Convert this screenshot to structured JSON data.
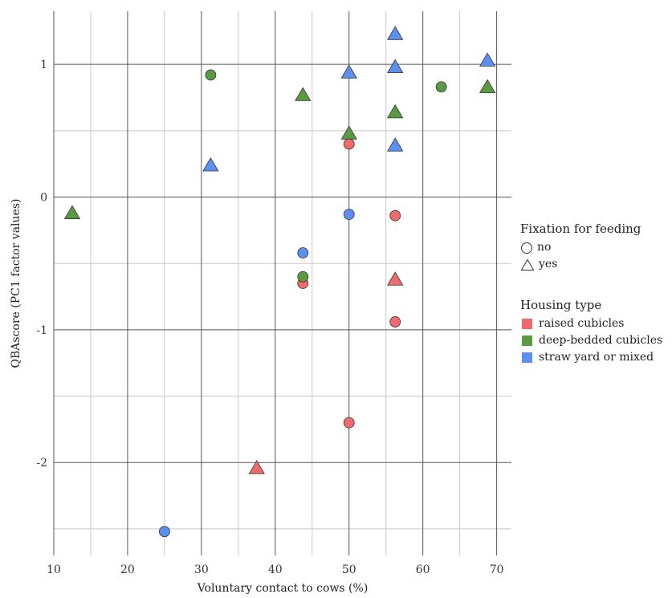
{
  "chart_data": {
    "type": "scatter",
    "xlabel": "Voluntary contact to cows (%)",
    "ylabel": "QBAscore (PC1 factor values)",
    "xlim": [
      10,
      72
    ],
    "ylim": [
      -2.7,
      1.4
    ],
    "x_ticks": [
      10,
      20,
      30,
      40,
      50,
      60,
      70
    ],
    "y_ticks": [
      1,
      0,
      -1,
      -2
    ],
    "x_tick_labels": [
      "10",
      "20",
      "30",
      "40",
      "50",
      "60",
      "70"
    ],
    "y_tick_labels": [
      "1",
      "0",
      "-1",
      "-2"
    ],
    "grid": true,
    "legends": [
      {
        "title": "Fixation for feeding",
        "items": [
          {
            "label": "no",
            "shape": "circle"
          },
          {
            "label": "yes",
            "shape": "triangle"
          }
        ]
      },
      {
        "title": "Housing type",
        "items": [
          {
            "label": "raised cubicles",
            "color": "#ef6b6b"
          },
          {
            "label": "deep-bedded cubicles",
            "color": "#5a9a42"
          },
          {
            "label": "straw yard or mixed",
            "color": "#5b8ff0"
          }
        ]
      }
    ],
    "points": [
      {
        "x": 12.5,
        "y": -0.12,
        "housing": "deep-bedded cubicles",
        "fixation": "yes"
      },
      {
        "x": 25.0,
        "y": -2.52,
        "housing": "straw yard or mixed",
        "fixation": "no"
      },
      {
        "x": 31.25,
        "y": 0.92,
        "housing": "deep-bedded cubicles",
        "fixation": "no"
      },
      {
        "x": 31.25,
        "y": 0.24,
        "housing": "straw yard or mixed",
        "fixation": "yes"
      },
      {
        "x": 37.5,
        "y": -2.04,
        "housing": "raised cubicles",
        "fixation": "yes"
      },
      {
        "x": 43.75,
        "y": 0.77,
        "housing": "deep-bedded cubicles",
        "fixation": "yes"
      },
      {
        "x": 43.75,
        "y": -0.42,
        "housing": "straw yard or mixed",
        "fixation": "no"
      },
      {
        "x": 43.75,
        "y": -0.65,
        "housing": "raised cubicles",
        "fixation": "no"
      },
      {
        "x": 43.75,
        "y": -0.6,
        "housing": "deep-bedded cubicles",
        "fixation": "no"
      },
      {
        "x": 50.0,
        "y": 0.94,
        "housing": "straw yard or mixed",
        "fixation": "yes"
      },
      {
        "x": 50.0,
        "y": 0.48,
        "housing": "deep-bedded cubicles",
        "fixation": "yes"
      },
      {
        "x": 50.0,
        "y": 0.4,
        "housing": "raised cubicles",
        "fixation": "no"
      },
      {
        "x": 50.0,
        "y": -0.13,
        "housing": "straw yard or mixed",
        "fixation": "no"
      },
      {
        "x": 50.0,
        "y": -1.7,
        "housing": "raised cubicles",
        "fixation": "no"
      },
      {
        "x": 56.25,
        "y": 1.23,
        "housing": "straw yard or mixed",
        "fixation": "yes"
      },
      {
        "x": 56.25,
        "y": 0.98,
        "housing": "straw yard or mixed",
        "fixation": "yes"
      },
      {
        "x": 56.25,
        "y": 0.64,
        "housing": "deep-bedded cubicles",
        "fixation": "yes"
      },
      {
        "x": 56.25,
        "y": 0.39,
        "housing": "straw yard or mixed",
        "fixation": "yes"
      },
      {
        "x": 56.25,
        "y": -0.14,
        "housing": "raised cubicles",
        "fixation": "no"
      },
      {
        "x": 56.25,
        "y": -0.62,
        "housing": "raised cubicles",
        "fixation": "yes"
      },
      {
        "x": 56.25,
        "y": -0.94,
        "housing": "raised cubicles",
        "fixation": "no"
      },
      {
        "x": 62.5,
        "y": 0.83,
        "housing": "deep-bedded cubicles",
        "fixation": "no"
      },
      {
        "x": 68.75,
        "y": 1.03,
        "housing": "straw yard or mixed",
        "fixation": "yes"
      },
      {
        "x": 68.75,
        "y": 0.83,
        "housing": "deep-bedded cubicles",
        "fixation": "yes"
      }
    ]
  }
}
